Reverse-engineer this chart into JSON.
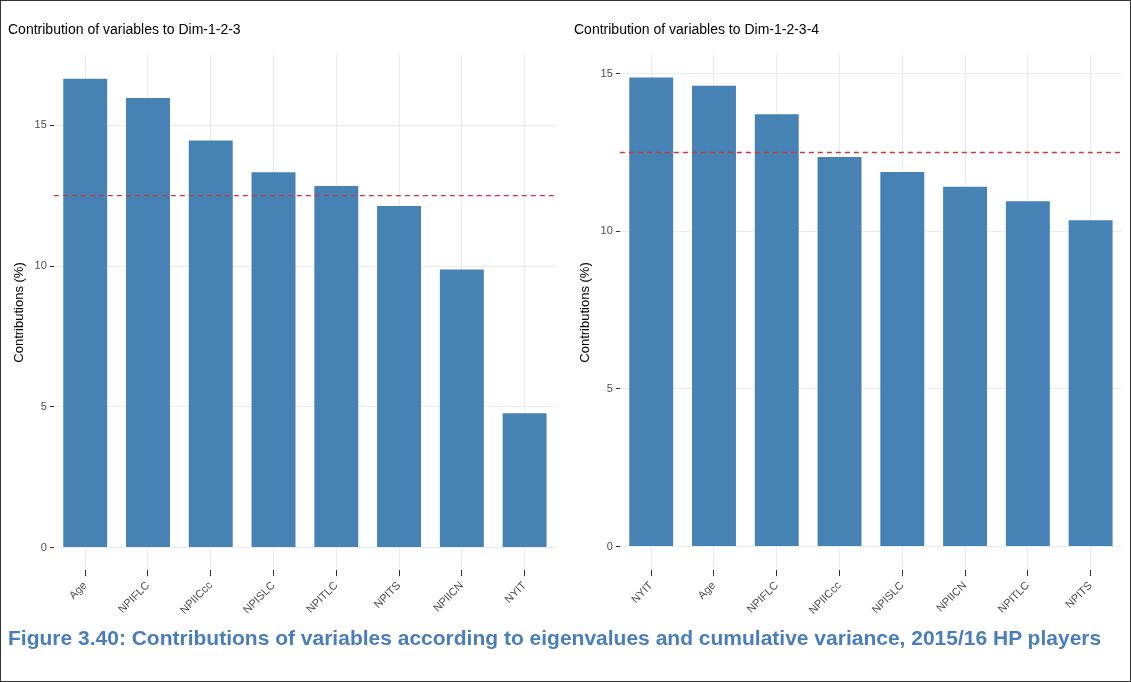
{
  "chart_data": [
    {
      "type": "bar",
      "title": "Contribution of variables to Dim-1-2-3",
      "ylabel": "Contributions (%)",
      "categories": [
        "Age",
        "NPIFLC",
        "NPIICcc",
        "NPISLC",
        "NPITLC",
        "NPITS",
        "NPIICN",
        "NYIT"
      ],
      "values": [
        16.65,
        15.97,
        14.46,
        13.33,
        12.84,
        12.13,
        9.88,
        4.77
      ],
      "color": "#4682b4",
      "ylim": [
        -0.8,
        17.5
      ],
      "yticks": [
        0,
        5,
        10,
        15
      ],
      "grid": true,
      "legend": false,
      "ref_lines": [
        {
          "axis": "y",
          "value": 12.5,
          "color": "#c9383a",
          "line_style": "dashed"
        }
      ],
      "annotations": [
        "Figure 3.40: Contributions of variables according to eigenvalues and cumulative variance, 2015/16 HP players"
      ]
    },
    {
      "type": "bar",
      "title": "Contribution of variables to Dim-1-2-3-4",
      "ylabel": "Contributions (%)",
      "categories": [
        "NYIT",
        "Age",
        "NPIFLC",
        "NPIICcc",
        "NPISLC",
        "NPIICN",
        "NPITLC",
        "NPITS"
      ],
      "values": [
        14.88,
        14.62,
        13.71,
        12.36,
        11.88,
        11.41,
        10.95,
        10.35
      ],
      "color": "#4682b4",
      "ylim": [
        -0.75,
        15.6
      ],
      "yticks": [
        0,
        5,
        10,
        15
      ],
      "grid": true,
      "legend": false,
      "ref_lines": [
        {
          "axis": "y",
          "value": 12.5,
          "color": "#c9383a",
          "line_style": "dashed"
        }
      ]
    }
  ]
}
